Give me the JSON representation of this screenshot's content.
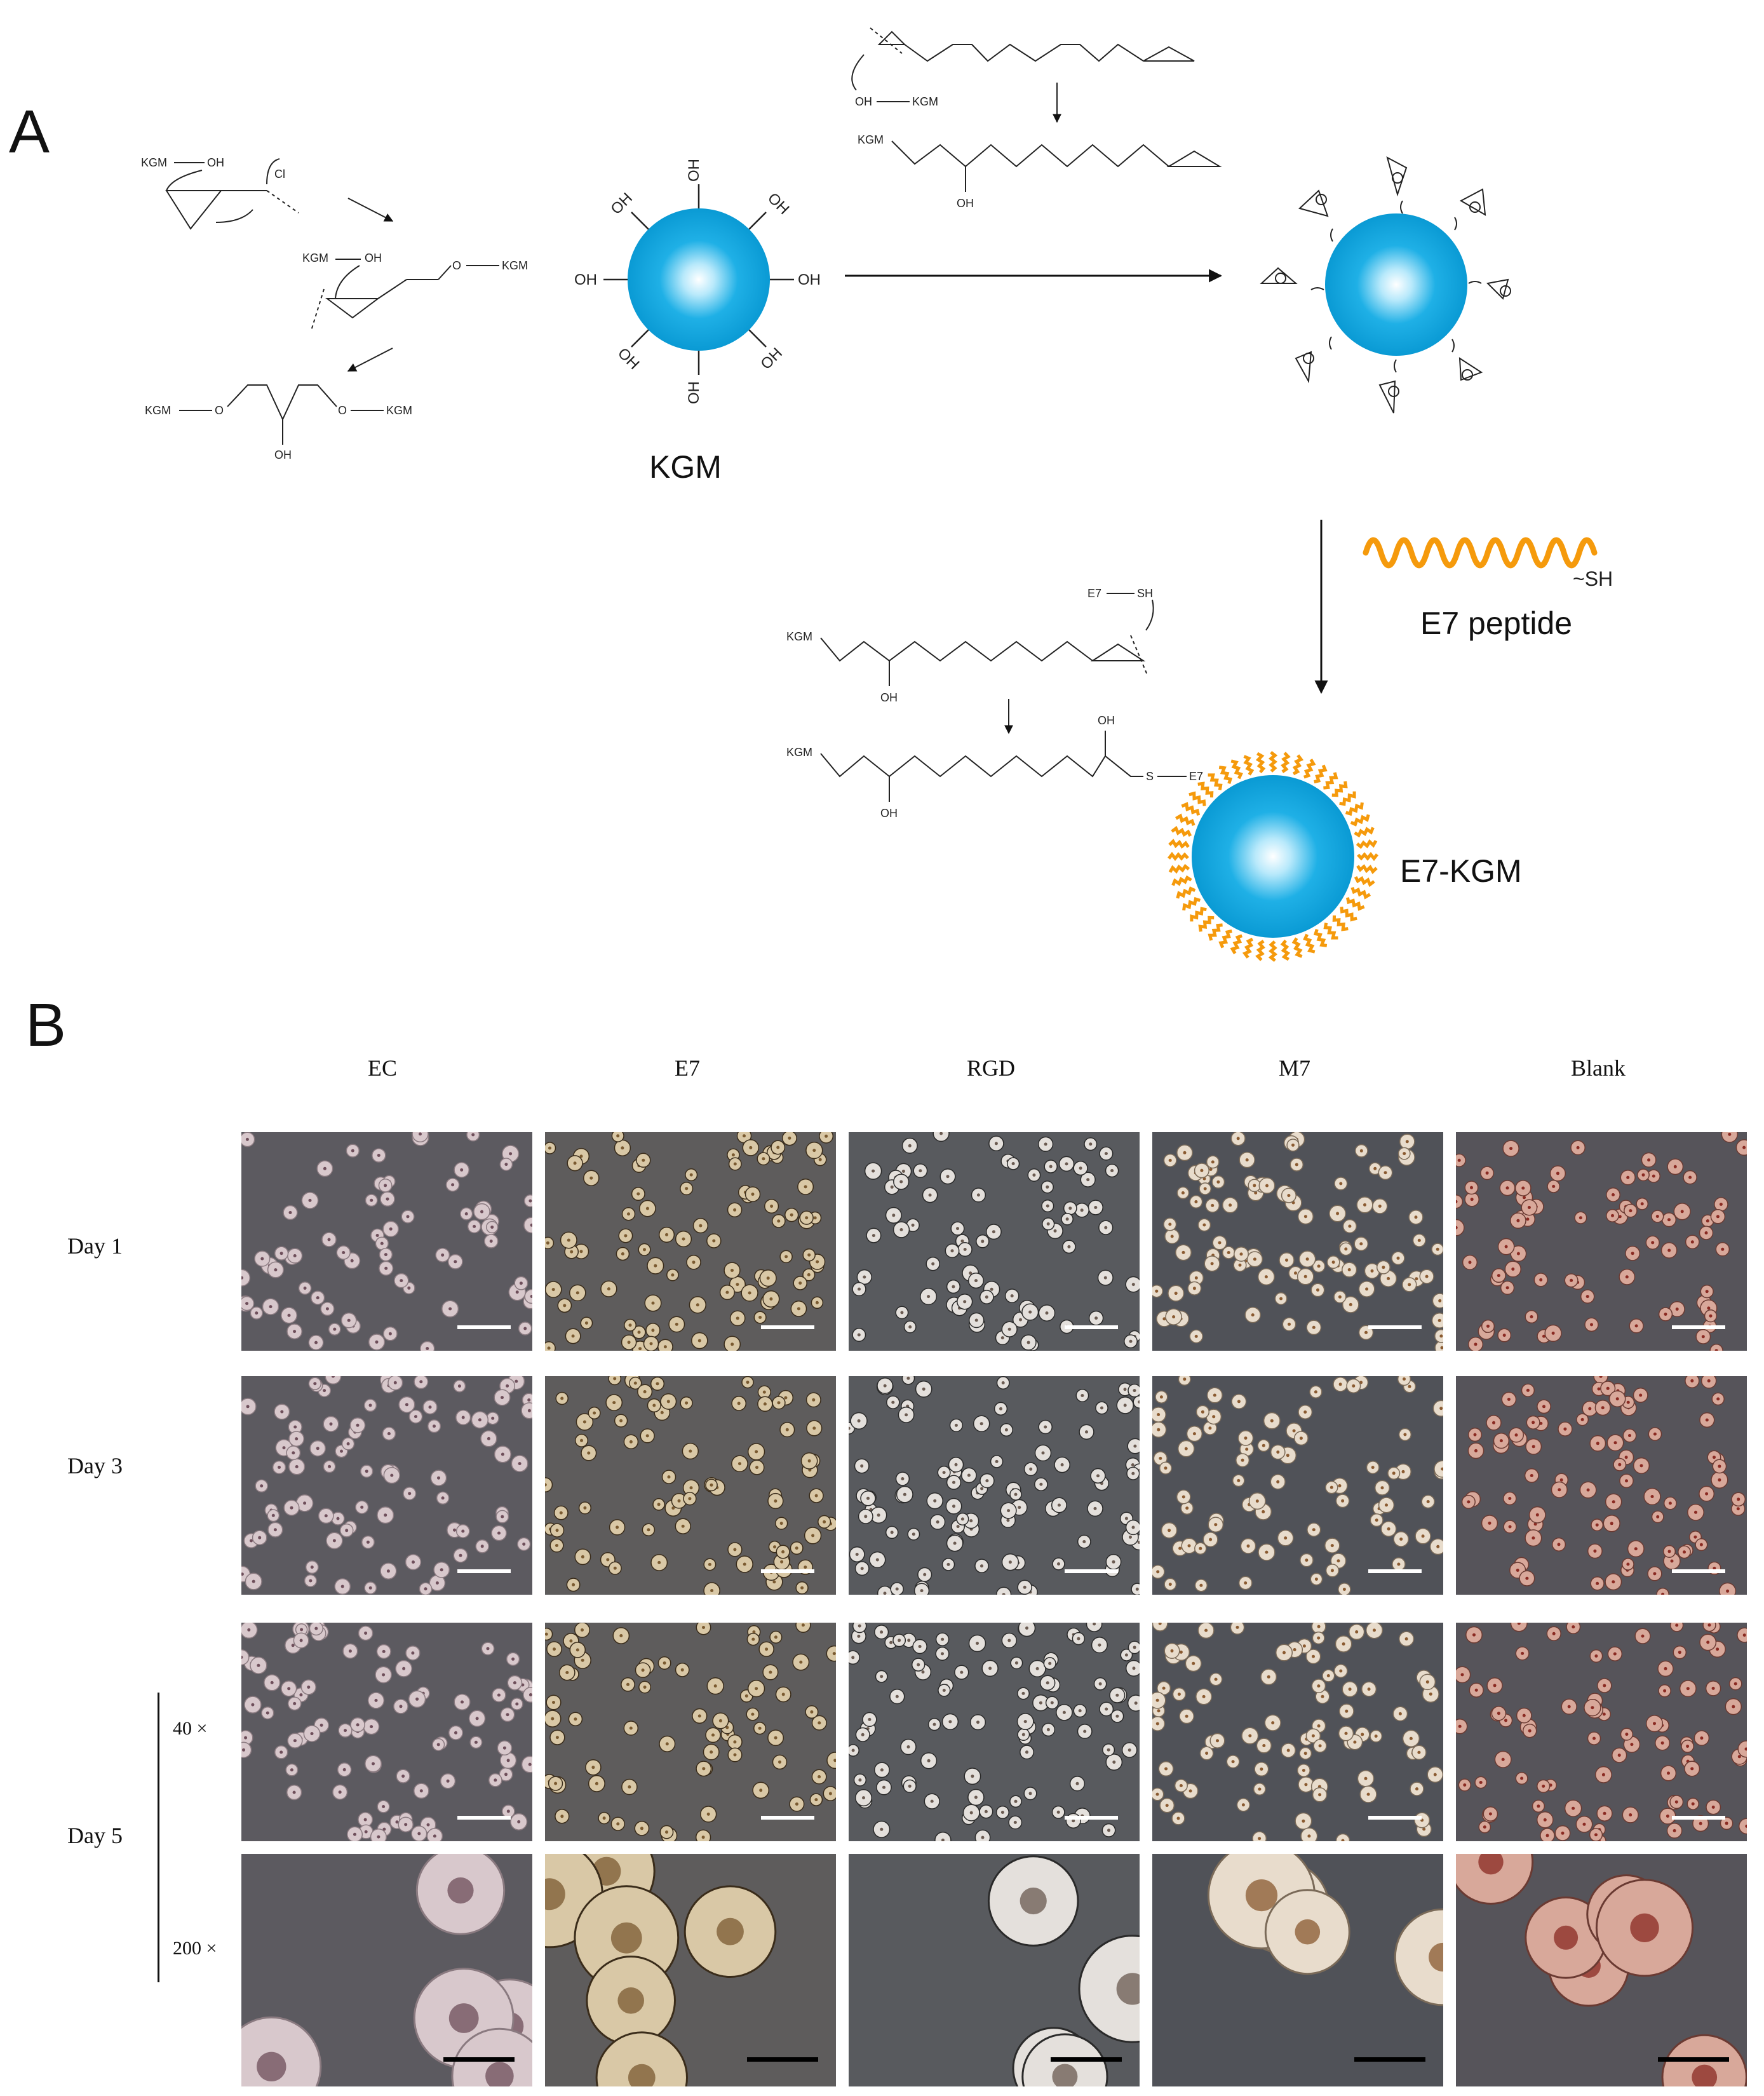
{
  "panels": {
    "a": "A",
    "b": "B"
  },
  "scheme": {
    "kgm_label": "KGM",
    "e7kgm_label": "E7-KGM",
    "peptide_label": "E7 peptide",
    "peptide_thiol": "~SH",
    "sphere_substituent": "OH",
    "mechanism_left": {
      "reagent_a": "KGM",
      "reagent_b": "OH",
      "leaving_group": "Cl",
      "product_chain": "O",
      "product_end": "KGM",
      "final_hydroxyl": "OH"
    },
    "mechanism_top": {
      "nucleophile": "OH",
      "nucleophile_end": "KGM",
      "product_start": "KGM",
      "product_oh": "OH"
    },
    "mechanism_bottom": {
      "thiol_reagent": "E7",
      "thiol_group": "SH",
      "chain_start": "KGM",
      "chain_oh": "OH",
      "product_s": "S",
      "product_e7": "E7"
    }
  },
  "grid": {
    "columns": [
      "EC",
      "E7",
      "RGD",
      "M7",
      "Blank"
    ],
    "rows": [
      "Day 1",
      "Day 3",
      "Day 5"
    ],
    "magnifications": [
      "40 ×",
      "200 ×"
    ]
  },
  "colors": {
    "sphere": "#0aa3dd",
    "sphere_core": "#ffffff",
    "peptide": "#f59a0c",
    "microscope_bg": "#5a5a5e",
    "scale_bar_40x": "#ffffff",
    "scale_bar_200x": "#000000"
  }
}
